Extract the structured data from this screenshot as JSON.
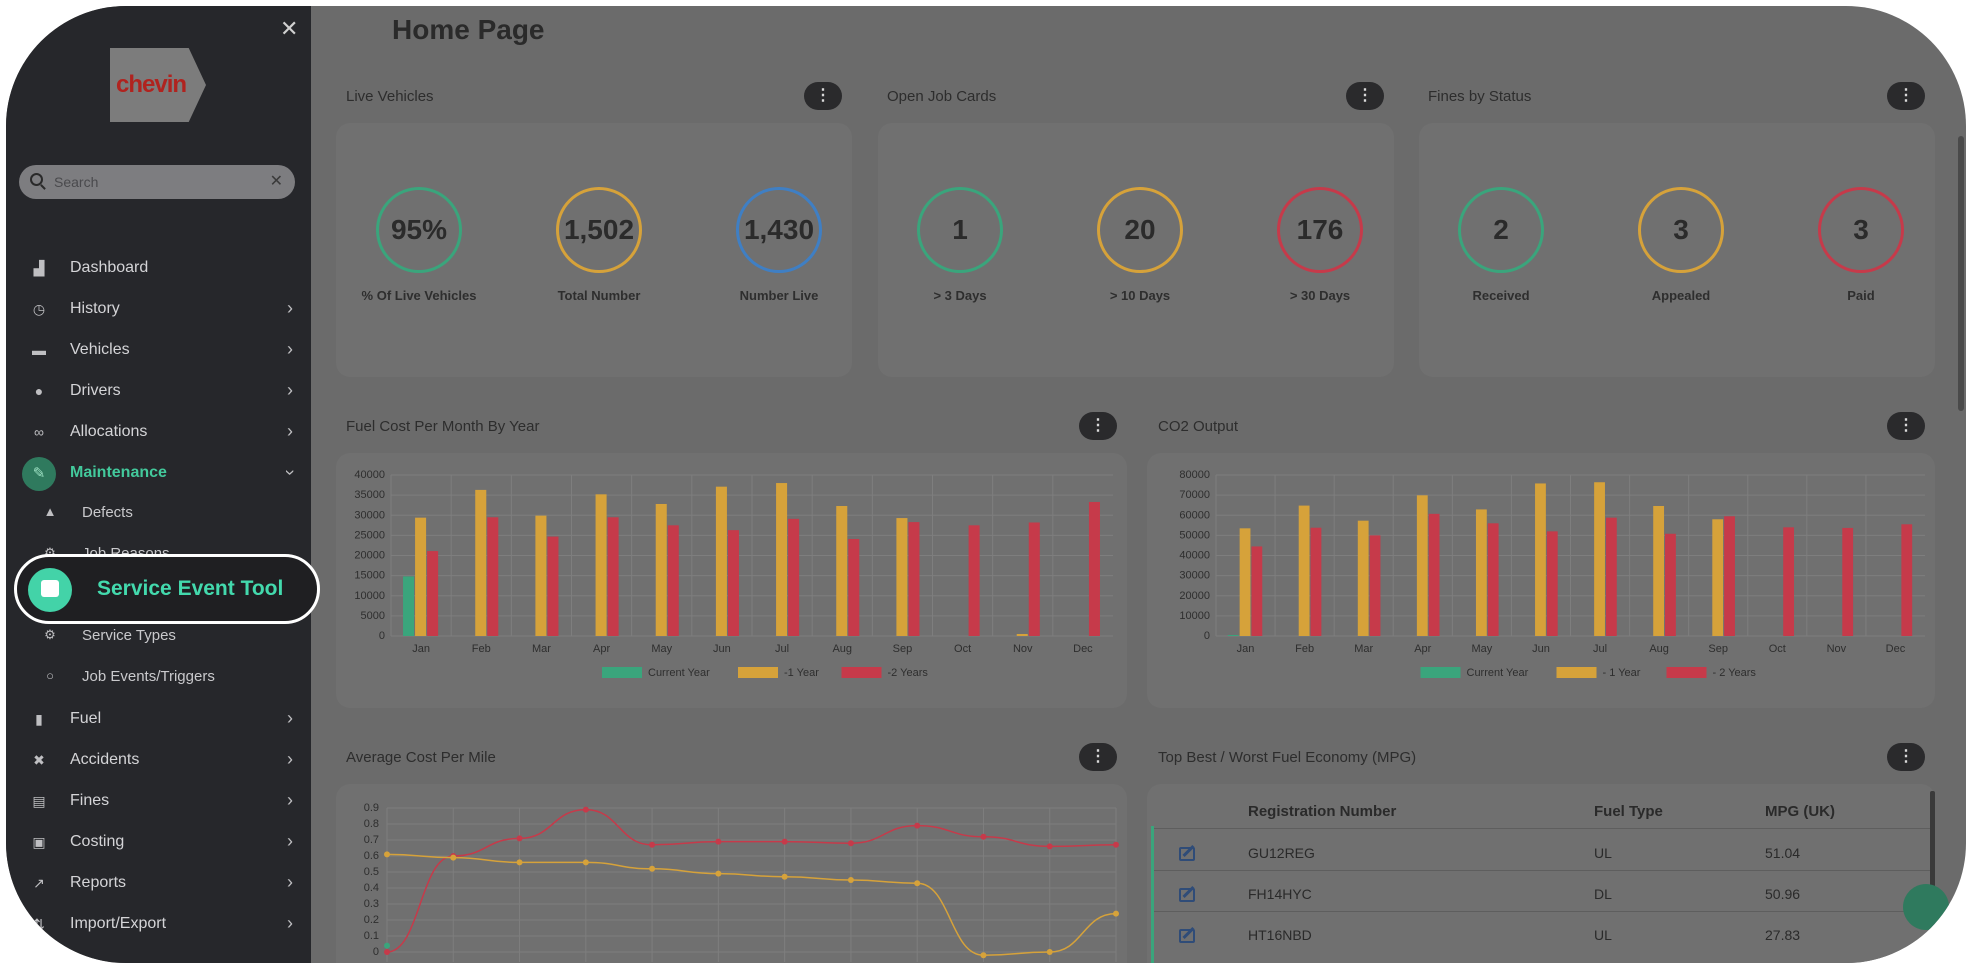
{
  "sidebar": {
    "logo_text": "chevin",
    "search_placeholder": "Search",
    "items": [
      {
        "label": "Dashboard",
        "icon": "dashboard-icon"
      },
      {
        "label": "History",
        "icon": "history-icon"
      },
      {
        "label": "Vehicles",
        "icon": "car-icon"
      },
      {
        "label": "Drivers",
        "icon": "user-icon"
      },
      {
        "label": "Allocations",
        "icon": "link-icon"
      },
      {
        "label": "Maintenance",
        "icon": "wrench-icon"
      },
      {
        "label": "Fuel",
        "icon": "fuel-icon"
      },
      {
        "label": "Accidents",
        "icon": "accident-icon"
      },
      {
        "label": "Fines",
        "icon": "document-icon"
      },
      {
        "label": "Costing",
        "icon": "money-icon"
      },
      {
        "label": "Reports",
        "icon": "reports-icon"
      },
      {
        "label": "Import/Export",
        "icon": "import-export-icon"
      }
    ],
    "sub_items": [
      {
        "label": "Defects",
        "icon": "warning-icon"
      },
      {
        "label": "Job Reasons",
        "icon": "gear-icon"
      },
      {
        "label": "Service Types",
        "icon": "gear-icon"
      },
      {
        "label": "Job Events/Triggers",
        "icon": "circle-icon"
      }
    ],
    "highlight_label": "Service Event Tool"
  },
  "page": {
    "title": "Home Page"
  },
  "panels": {
    "live_vehicles": {
      "title": "Live Vehicles",
      "gauges": [
        {
          "value": "95%",
          "label": "% Of Live Vehicles",
          "color": "#3aa57c"
        },
        {
          "value": "1,502",
          "label": "Total Number",
          "color": "#d6a23a"
        },
        {
          "value": "1,430",
          "label": "Number Live",
          "color": "#3f7fc4"
        }
      ]
    },
    "open_job_cards": {
      "title": "Open Job Cards",
      "gauges": [
        {
          "value": "1",
          "label": "> 3 Days",
          "color": "#3aa57c"
        },
        {
          "value": "20",
          "label": "> 10 Days",
          "color": "#d6a23a"
        },
        {
          "value": "176",
          "label": "> 30 Days",
          "color": "#c63a4a"
        }
      ]
    },
    "fines_by_status": {
      "title": "Fines by Status",
      "gauges": [
        {
          "value": "2",
          "label": "Received",
          "color": "#3aa57c"
        },
        {
          "value": "3",
          "label": "Appealed",
          "color": "#d6a23a"
        },
        {
          "value": "3",
          "label": "Paid",
          "color": "#c63a4a"
        }
      ]
    },
    "fuel_cost": {
      "title": "Fuel Cost Per Month By Year"
    },
    "co2": {
      "title": "CO2 Output"
    },
    "avg_cost": {
      "title": "Average Cost Per Mile"
    },
    "economy": {
      "title": "Top Best / Worst Fuel Economy (MPG)",
      "headers": [
        "Registration Number",
        "Fuel Type",
        "MPG (UK)"
      ],
      "rows": [
        {
          "reg": "GU12REG",
          "fuel": "UL",
          "mpg": "51.04"
        },
        {
          "reg": "FH14HYC",
          "fuel": "DL",
          "mpg": "50.96"
        },
        {
          "reg": "HT16NBD",
          "fuel": "UL",
          "mpg": "27.83"
        }
      ]
    }
  },
  "menu_glyph": "⋮",
  "chart_data": [
    {
      "type": "bar",
      "title": "Fuel Cost Per Month By Year",
      "categories": [
        "Jan",
        "Feb",
        "Mar",
        "Apr",
        "May",
        "Jun",
        "Jul",
        "Aug",
        "Sep",
        "Oct",
        "Nov",
        "Dec"
      ],
      "ylim": [
        0,
        40000
      ],
      "yticks": [
        0,
        5000,
        10000,
        15000,
        20000,
        25000,
        30000,
        35000,
        40000
      ],
      "series": [
        {
          "name": "Current Year",
          "color": "#3aa57c",
          "values": [
            14800,
            0,
            0,
            0,
            0,
            0,
            0,
            0,
            0,
            0,
            0,
            0
          ]
        },
        {
          "name": "-1 Year",
          "color": "#d6a23a",
          "values": [
            29400,
            36300,
            29900,
            35200,
            32800,
            37100,
            38000,
            32300,
            29300,
            0,
            500,
            0
          ]
        },
        {
          "name": "-2 Years",
          "color": "#c63a4a",
          "values": [
            21100,
            29500,
            24700,
            29500,
            27500,
            26300,
            29100,
            24100,
            28300,
            27500,
            28200,
            33300
          ]
        }
      ]
    },
    {
      "type": "bar",
      "title": "CO2 Output",
      "categories": [
        "Jan",
        "Feb",
        "Mar",
        "Apr",
        "May",
        "Jun",
        "Jul",
        "Aug",
        "Sep",
        "Oct",
        "Nov",
        "Dec"
      ],
      "ylim": [
        0,
        80000
      ],
      "yticks": [
        0,
        10000,
        20000,
        30000,
        40000,
        50000,
        60000,
        70000,
        80000
      ],
      "series": [
        {
          "name": "Current Year",
          "color": "#3aa57c",
          "values": [
            500,
            0,
            0,
            0,
            0,
            0,
            0,
            0,
            0,
            0,
            0,
            0
          ]
        },
        {
          "name": "- 1 Year",
          "color": "#d6a23a",
          "values": [
            53500,
            64800,
            57300,
            69900,
            62900,
            75800,
            76400,
            64600,
            58000,
            0,
            0,
            0
          ]
        },
        {
          "name": "- 2 Years",
          "color": "#c63a4a",
          "values": [
            44500,
            53800,
            50000,
            60700,
            56000,
            52000,
            58800,
            50800,
            59500,
            54000,
            53700,
            55500
          ]
        }
      ]
    },
    {
      "type": "line",
      "title": "Average Cost Per Mile",
      "ylim": [
        0,
        0.9
      ],
      "yticks": [
        "0",
        "0.1",
        "0.2",
        "0.3",
        "0.4",
        "0.5",
        "0.6",
        "0.7",
        "0.8",
        "0.9"
      ],
      "series": [
        {
          "color": "#c63a4a",
          "values": [
            0.0,
            0.6,
            0.71,
            0.89,
            0.67,
            0.69,
            0.69,
            0.68,
            0.79,
            0.72,
            0.66,
            0.67
          ]
        },
        {
          "color": "#d6a23a",
          "values": [
            0.61,
            0.59,
            0.56,
            0.56,
            0.52,
            0.49,
            0.47,
            0.45,
            0.43,
            -0.02,
            0.0,
            0.24
          ]
        },
        {
          "color": "#3aa57c",
          "values": [
            0.04
          ]
        }
      ]
    }
  ]
}
